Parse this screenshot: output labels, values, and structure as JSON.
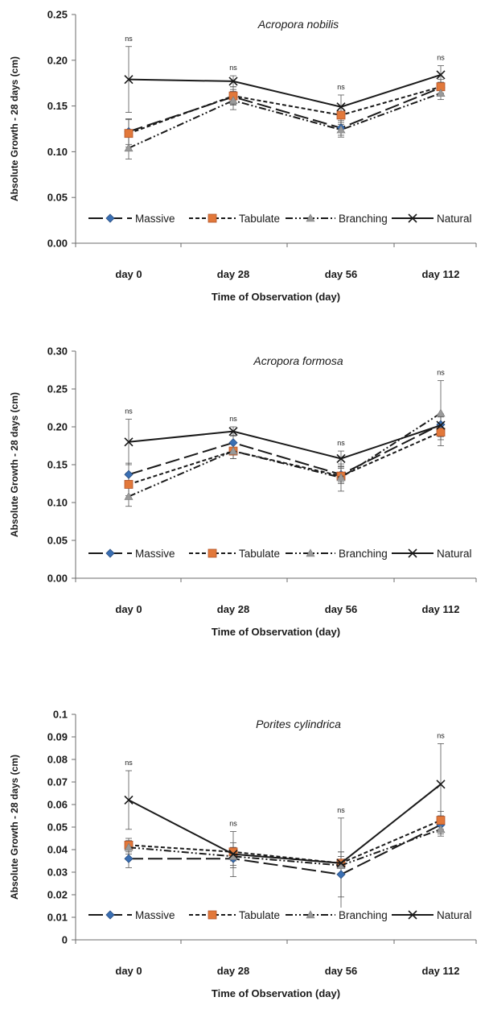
{
  "chart_data": [
    {
      "type": "line",
      "title": "Acropora nobilis",
      "xlabel": "Time of Observation (day)",
      "ylabel": "Absolute Growth - 28 days (cm)",
      "categories": [
        "day 0",
        "day 28",
        "day 56",
        "day 112"
      ],
      "ylim": [
        0,
        0.25
      ],
      "yticks": [
        "0.00",
        "0.05",
        "0.10",
        "0.15",
        "0.20",
        "0.25"
      ],
      "annotations": [
        "ns",
        "ns",
        "ns",
        "ns"
      ],
      "legend_position": "bottom",
      "series": [
        {
          "name": "Massive",
          "values": [
            0.122,
            0.16,
            0.126,
            0.17
          ],
          "error": [
            0.014,
            0.008,
            0.008,
            0.006
          ],
          "color": "#3a6fb3",
          "marker": "diamond",
          "dash": "18,6"
        },
        {
          "name": "Tabulate",
          "values": [
            0.12,
            0.161,
            0.14,
            0.171
          ],
          "error": [
            0.015,
            0.01,
            0.01,
            0.008
          ],
          "color": "#e2783a",
          "marker": "square",
          "dash": "5,3"
        },
        {
          "name": "Branching",
          "values": [
            0.104,
            0.156,
            0.124,
            0.164
          ],
          "error": [
            0.012,
            0.01,
            0.008,
            0.007
          ],
          "color": "#9a9a9a",
          "marker": "triangle",
          "dash": "9,3,2,3,2,3"
        },
        {
          "name": "Natural",
          "values": [
            0.179,
            0.177,
            0.149,
            0.184
          ],
          "error": [
            0.036,
            0.006,
            0.013,
            0.01
          ],
          "color": "#1a1a1a",
          "marker": "x",
          "dash": ""
        }
      ]
    },
    {
      "type": "line",
      "title": "Acropora formosa",
      "xlabel": "Time of Observation (day)",
      "ylabel": "Absolute Growth - 28 days (cm)",
      "categories": [
        "day 0",
        "day 28",
        "day 56",
        "day 112"
      ],
      "ylim": [
        0,
        0.3
      ],
      "yticks": [
        "0.00",
        "0.05",
        "0.10",
        "0.15",
        "0.20",
        "0.25",
        "0.30"
      ],
      "annotations": [
        "ns",
        "ns",
        "ns",
        "ns"
      ],
      "legend_position": "bottom",
      "series": [
        {
          "name": "Massive",
          "values": [
            0.137,
            0.179,
            0.137,
            0.203
          ],
          "error": [
            0.015,
            0.01,
            0.01,
            0.01
          ],
          "color": "#3a6fb3",
          "marker": "diamond",
          "dash": "18,6"
        },
        {
          "name": "Tabulate",
          "values": [
            0.124,
            0.168,
            0.135,
            0.193
          ],
          "error": [
            0.015,
            0.01,
            0.01,
            0.01
          ],
          "color": "#e2783a",
          "marker": "square",
          "dash": "5,3"
        },
        {
          "name": "Branching",
          "values": [
            0.108,
            0.168,
            0.133,
            0.218
          ],
          "error": [
            0.013,
            0.01,
            0.018,
            0.043
          ],
          "color": "#9a9a9a",
          "marker": "triangle",
          "dash": "9,3,2,3,2,3"
        },
        {
          "name": "Natural",
          "values": [
            0.18,
            0.194,
            0.158,
            0.202
          ],
          "error": [
            0.03,
            0.006,
            0.01,
            0.015
          ],
          "color": "#1a1a1a",
          "marker": "x",
          "dash": ""
        }
      ]
    },
    {
      "type": "line",
      "title": "Porites cylindrica",
      "xlabel": "Time of Observation (day)",
      "ylabel": "Absolute Growth - 28 days (cm)",
      "categories": [
        "day 0",
        "day 28",
        "day 56",
        "day 112"
      ],
      "ylim": [
        0,
        0.1
      ],
      "yticks": [
        "0",
        "0.01",
        "0.02",
        "0.03",
        "0.04",
        "0.05",
        "0.06",
        "0.07",
        "0.08",
        "0.09",
        "0.1"
      ],
      "annotations": [
        "ns",
        "ns",
        "ns",
        "ns"
      ],
      "legend_position": "bottom",
      "series": [
        {
          "name": "Massive",
          "values": [
            0.036,
            0.036,
            0.029,
            0.051
          ],
          "error": [
            0.004,
            0.004,
            0.01,
            0.004
          ],
          "color": "#3a6fb3",
          "marker": "diamond",
          "dash": "18,6"
        },
        {
          "name": "Tabulate",
          "values": [
            0.042,
            0.039,
            0.034,
            0.053
          ],
          "error": [
            0.003,
            0.004,
            0.005,
            0.004
          ],
          "color": "#e2783a",
          "marker": "square",
          "dash": "5,3"
        },
        {
          "name": "Branching",
          "values": [
            0.041,
            0.037,
            0.033,
            0.049
          ],
          "error": [
            0.003,
            0.004,
            0.004,
            0.003
          ],
          "color": "#9a9a9a",
          "marker": "triangle",
          "dash": "9,3,2,3,2,3"
        },
        {
          "name": "Natural",
          "values": [
            0.062,
            0.038,
            0.034,
            0.069
          ],
          "error": [
            0.013,
            0.01,
            0.02,
            0.018
          ],
          "color": "#1a1a1a",
          "marker": "x",
          "dash": ""
        }
      ]
    }
  ]
}
